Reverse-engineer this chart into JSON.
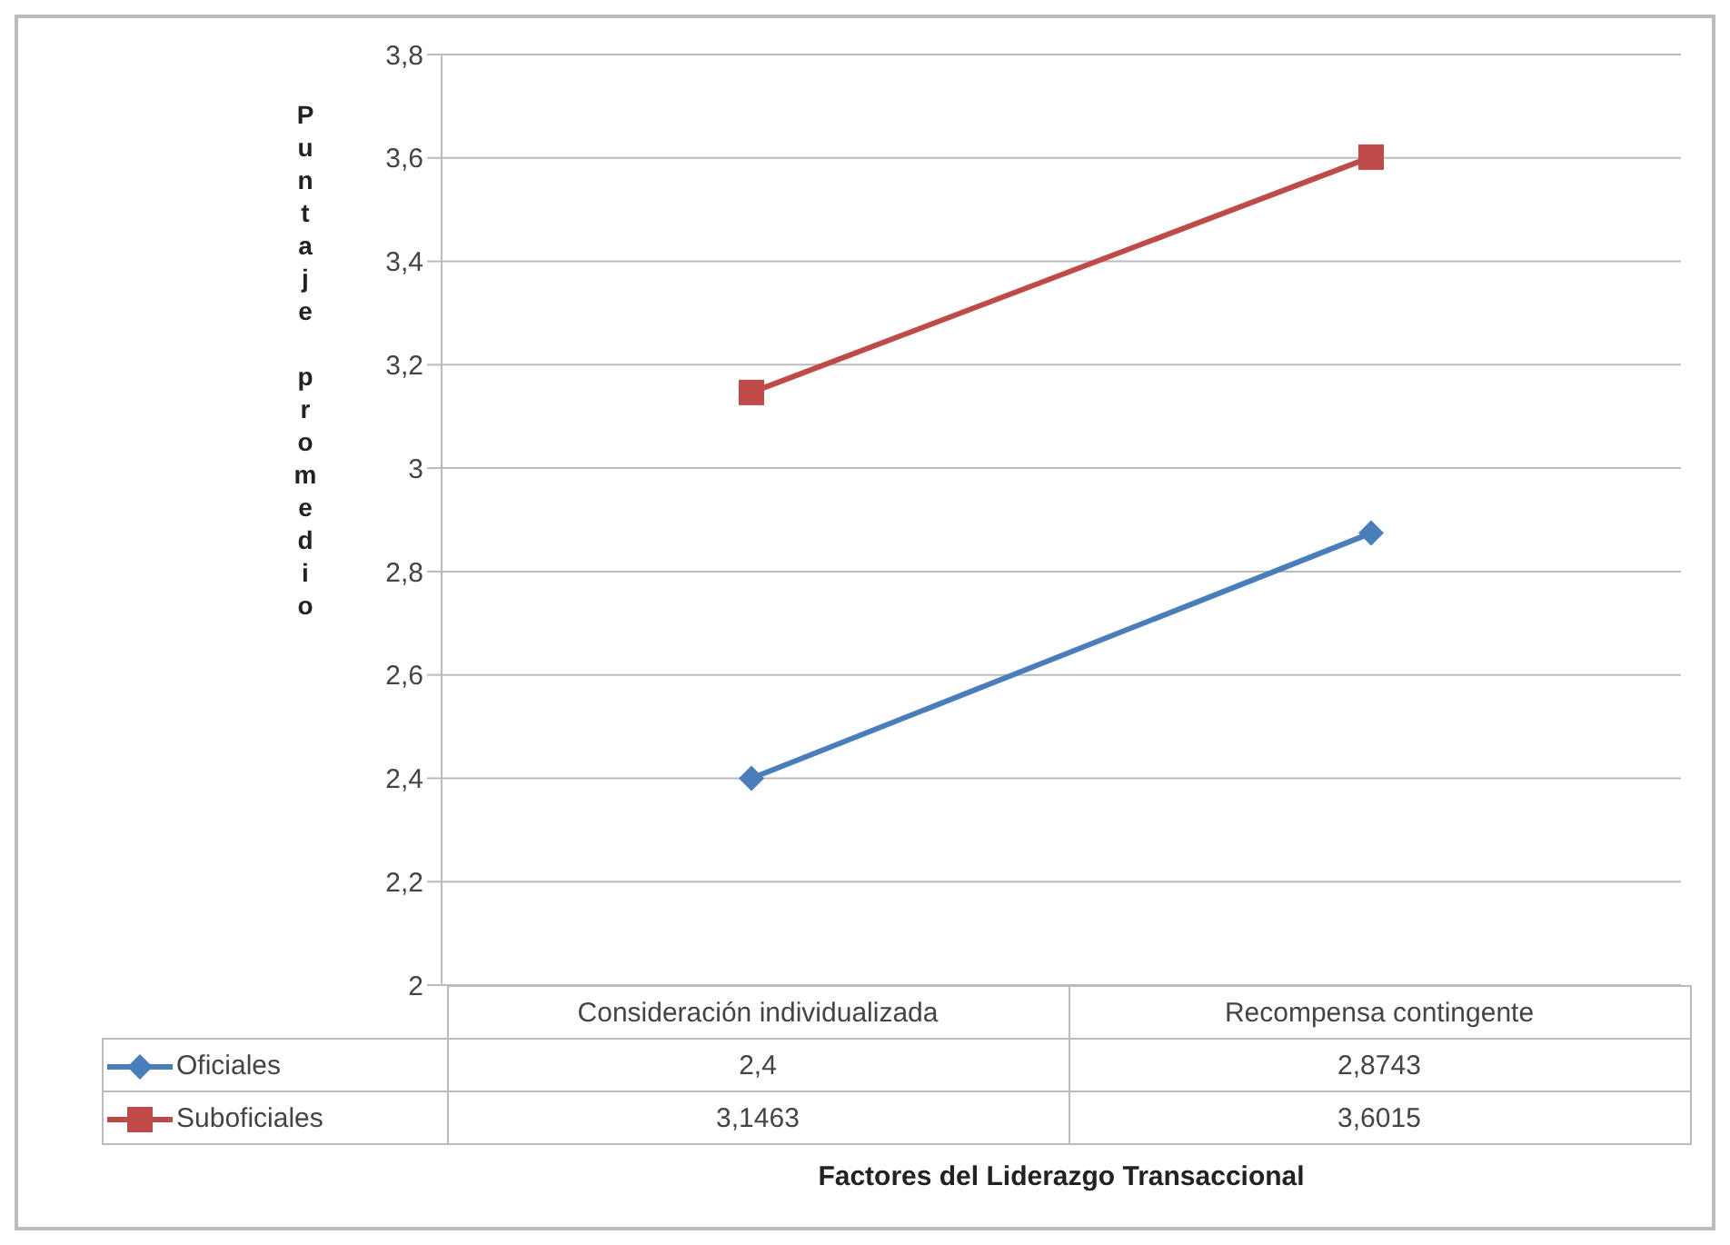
{
  "chart_data": {
    "type": "line",
    "ylabel": "Puntaje promedio",
    "xlabel": "Factores del Liderazgo Transaccional",
    "categories": [
      "Consideración individualizada",
      "Recompensa contingente"
    ],
    "series": [
      {
        "name": "Oficiales",
        "color": "#4a7ebb",
        "marker": "diamond",
        "values": [
          2.4,
          2.8743
        ],
        "value_labels": [
          "2,4",
          "2,8743"
        ]
      },
      {
        "name": "Suboficiales",
        "color": "#be4b48",
        "marker": "square",
        "values": [
          3.1463,
          3.6015
        ],
        "value_labels": [
          "3,1463",
          "3,6015"
        ]
      }
    ],
    "ylim": [
      2,
      3.8
    ],
    "yticks": [
      2,
      {
        "value": 2.2,
        "label": "2,2"
      },
      {
        "value": 2.4,
        "label": "2,4"
      },
      {
        "value": 2.6,
        "label": "2,6"
      },
      {
        "value": 2.8,
        "label": "2,8"
      },
      3,
      {
        "value": 3.2,
        "label": "3,2"
      },
      {
        "value": 3.4,
        "label": "3,4"
      },
      {
        "value": 3.6,
        "label": "3,6"
      },
      {
        "value": 3.8,
        "label": "3,8"
      }
    ],
    "grid": "y",
    "legend": "bottom"
  }
}
